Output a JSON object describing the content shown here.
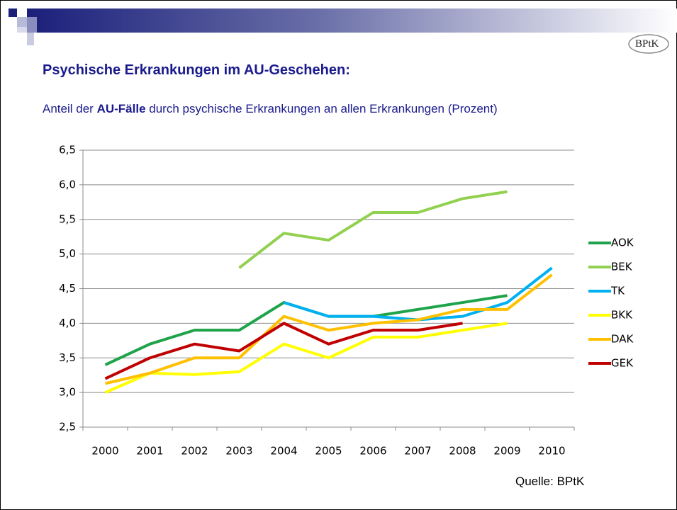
{
  "logo": "BPtK",
  "chart_data": {
    "type": "line",
    "title": "Psychische Erkrankungen im AU-Geschehen:",
    "subtitle_parts": [
      "Anteil der",
      "AU-Fälle",
      "durch psychische Erkrankungen an allen Erkrankungen (Prozent)"
    ],
    "source": "Quelle: BPtK",
    "categories": [
      "2000",
      "2001",
      "2002",
      "2003",
      "2004",
      "2005",
      "2006",
      "2007",
      "2008",
      "2009",
      "2010"
    ],
    "series": [
      {
        "name": "AOK",
        "color": "#1fa34a",
        "values": [
          3.4,
          3.7,
          3.9,
          3.9,
          4.3,
          4.1,
          4.1,
          4.2,
          4.3,
          4.4,
          null
        ]
      },
      {
        "name": "BEK",
        "color": "#92d050",
        "values": [
          null,
          null,
          null,
          4.8,
          5.3,
          5.2,
          5.6,
          5.6,
          5.8,
          5.9,
          null
        ]
      },
      {
        "name": "TK",
        "color": "#00b0f0",
        "values": [
          null,
          null,
          null,
          null,
          4.3,
          4.1,
          4.1,
          4.05,
          4.1,
          4.3,
          4.8
        ]
      },
      {
        "name": "BKK",
        "color": "#ffff00",
        "values": [
          3.0,
          3.28,
          3.26,
          3.3,
          3.7,
          3.5,
          3.8,
          3.8,
          3.9,
          4.0,
          null
        ]
      },
      {
        "name": "DAK",
        "color": "#ffc000",
        "values": [
          3.13,
          3.28,
          3.5,
          3.5,
          4.1,
          3.9,
          4.0,
          4.05,
          4.2,
          4.2,
          4.7
        ]
      },
      {
        "name": "GEK",
        "color": "#c00000",
        "values": [
          3.2,
          3.5,
          3.7,
          3.6,
          4.0,
          3.7,
          3.9,
          3.9,
          4.0,
          null,
          null
        ]
      }
    ],
    "ylim": [
      2.5,
      6.5
    ],
    "yticks": [
      {
        "value": 2.5,
        "label": "2,5"
      },
      {
        "value": 3.0,
        "label": "3,0"
      },
      {
        "value": 3.5,
        "label": "3,5"
      },
      {
        "value": 4.0,
        "label": "4,0"
      },
      {
        "value": 4.5,
        "label": "4,5"
      },
      {
        "value": 5.0,
        "label": "5,0"
      },
      {
        "value": 5.5,
        "label": "5,5"
      },
      {
        "value": 6.0,
        "label": "6,0"
      },
      {
        "value": 6.5,
        "label": "6,5"
      }
    ],
    "grid": true,
    "legend": "right"
  }
}
